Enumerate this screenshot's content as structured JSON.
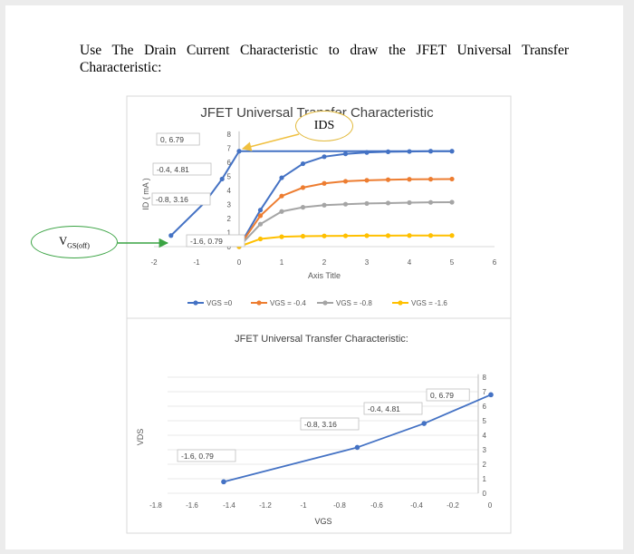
{
  "question": "Use The Drain Current Characteristic to draw the JFET Universal Transfer Characteristic:",
  "callouts": {
    "ids": "IDS",
    "vgs_main": "V",
    "vgs_sub": "GS(off)"
  },
  "chart_data": [
    {
      "type": "line",
      "title": "JFET Universal Transfer Characteristic",
      "xlabel": "Axis Title",
      "ylabel": "ID ( mA )",
      "xlim": [
        -2,
        6
      ],
      "ylim": [
        0,
        8
      ],
      "x_ticks": [
        "-2",
        "-1",
        "0",
        "1",
        "2",
        "3",
        "4",
        "5",
        "6"
      ],
      "y_ticks": [
        "0",
        "1",
        "2",
        "3",
        "4",
        "5",
        "6",
        "7",
        "8"
      ],
      "x": [
        0,
        0.5,
        1,
        1.5,
        2,
        2.5,
        3,
        3.5,
        4,
        4.5,
        5
      ],
      "series": [
        {
          "name": "VGS =0",
          "color": "#4472c4",
          "values": [
            0,
            2.6,
            4.9,
            5.9,
            6.4,
            6.6,
            6.7,
            6.75,
            6.77,
            6.79,
            6.79
          ]
        },
        {
          "name": "VGS = -0.4",
          "color": "#ed7d31",
          "values": [
            0,
            2.2,
            3.6,
            4.2,
            4.5,
            4.65,
            4.72,
            4.76,
            4.79,
            4.8,
            4.81
          ]
        },
        {
          "name": "VGS = -0.8",
          "color": "#a5a5a5",
          "values": [
            0,
            1.6,
            2.5,
            2.8,
            2.95,
            3.02,
            3.07,
            3.1,
            3.13,
            3.15,
            3.16
          ]
        },
        {
          "name": "VGS = -1.6",
          "color": "#ffc000",
          "values": [
            0,
            0.55,
            0.7,
            0.74,
            0.76,
            0.77,
            0.78,
            0.78,
            0.79,
            0.79,
            0.79
          ]
        }
      ],
      "transfer_overlay": {
        "color": "#4472c4",
        "points": [
          {
            "x": -1.6,
            "y": 0.79,
            "label": "-1.6, 0.79"
          },
          {
            "x": -0.8,
            "y": 3.16,
            "label": "-0.8, 3.16"
          },
          {
            "x": -0.4,
            "y": 4.81,
            "label": "-0.4, 4.81"
          },
          {
            "x": 0,
            "y": 6.79,
            "label": "0, 6.79"
          }
        ]
      },
      "legend": "bottom"
    },
    {
      "type": "line",
      "title": "JFET Universal Transfer Characteristic:",
      "xlabel": "VGS",
      "ylabel": "VDS",
      "xlim": [
        -1.8,
        0
      ],
      "ylim": [
        0,
        8
      ],
      "x_ticks": [
        "-1.8",
        "-1.6",
        "-1.4",
        "-1.2",
        "-1",
        "-0.8",
        "-0.6",
        "-0.4",
        "-0.2",
        "0"
      ],
      "y_ticks": [
        "0",
        "1",
        "2",
        "3",
        "4",
        "5",
        "6",
        "7",
        "8"
      ],
      "color": "#4472c4",
      "points": [
        {
          "x": -1.6,
          "y": 0.79,
          "label": "-1.6, 0.79"
        },
        {
          "x": -0.8,
          "y": 3.16,
          "label": "-0.8, 3.16"
        },
        {
          "x": -0.4,
          "y": 4.81,
          "label": "-0.4, 4.81"
        },
        {
          "x": 0,
          "y": 6.79,
          "label": "0, 6.79"
        }
      ]
    }
  ]
}
